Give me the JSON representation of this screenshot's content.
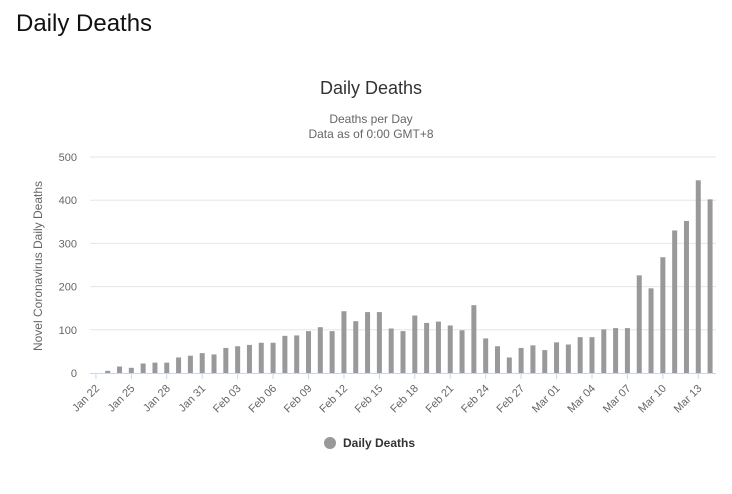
{
  "page": {
    "heading": "Daily Deaths"
  },
  "chart_data": {
    "type": "bar",
    "title": "Daily Deaths",
    "subtitle_line1": "Deaths per Day",
    "subtitle_line2": "Data as of 0:00 GMT+8",
    "ylabel": "Novel Coronavirus Daily Deaths",
    "xlabel": "",
    "ylim": [
      0,
      500
    ],
    "yticks": [
      0,
      100,
      200,
      300,
      400,
      500
    ],
    "grid": true,
    "legend_position": "bottom",
    "bar_color": "#999999",
    "categories": [
      "Jan 22",
      "Jan 23",
      "Jan 24",
      "Jan 25",
      "Jan 26",
      "Jan 27",
      "Jan 28",
      "Jan 29",
      "Jan 30",
      "Jan 31",
      "Feb 01",
      "Feb 02",
      "Feb 03",
      "Feb 04",
      "Feb 05",
      "Feb 06",
      "Feb 07",
      "Feb 08",
      "Feb 09",
      "Feb 10",
      "Feb 11",
      "Feb 12",
      "Feb 13",
      "Feb 14",
      "Feb 15",
      "Feb 16",
      "Feb 17",
      "Feb 18",
      "Feb 19",
      "Feb 20",
      "Feb 21",
      "Feb 22",
      "Feb 23",
      "Feb 24",
      "Feb 25",
      "Feb 26",
      "Feb 27",
      "Feb 28",
      "Feb 29",
      "Mar 01",
      "Mar 02",
      "Mar 03",
      "Mar 04",
      "Mar 05",
      "Mar 06",
      "Mar 07",
      "Mar 08",
      "Mar 09",
      "Mar 10",
      "Mar 11",
      "Mar 12",
      "Mar 13",
      "Mar 14"
    ],
    "tick_labels": [
      "Jan 22",
      "Jan 25",
      "Jan 28",
      "Jan 31",
      "Feb 03",
      "Feb 06",
      "Feb 09",
      "Feb 12",
      "Feb 15",
      "Feb 18",
      "Feb 21",
      "Feb 24",
      "Feb 27",
      "Mar 01",
      "Mar 04",
      "Mar 07",
      "Mar 10",
      "Mar 13"
    ],
    "series": [
      {
        "name": "Daily Deaths",
        "values": [
          0,
          5,
          15,
          12,
          22,
          24,
          24,
          36,
          40,
          46,
          43,
          58,
          62,
          65,
          70,
          70,
          86,
          87,
          97,
          106,
          97,
          143,
          120,
          141,
          141,
          103,
          97,
          133,
          116,
          119,
          110,
          99,
          157,
          80,
          62,
          36,
          58,
          64,
          53,
          71,
          66,
          83,
          83,
          101,
          104,
          104,
          226,
          196,
          268,
          330,
          352,
          446,
          402
        ]
      }
    ]
  }
}
